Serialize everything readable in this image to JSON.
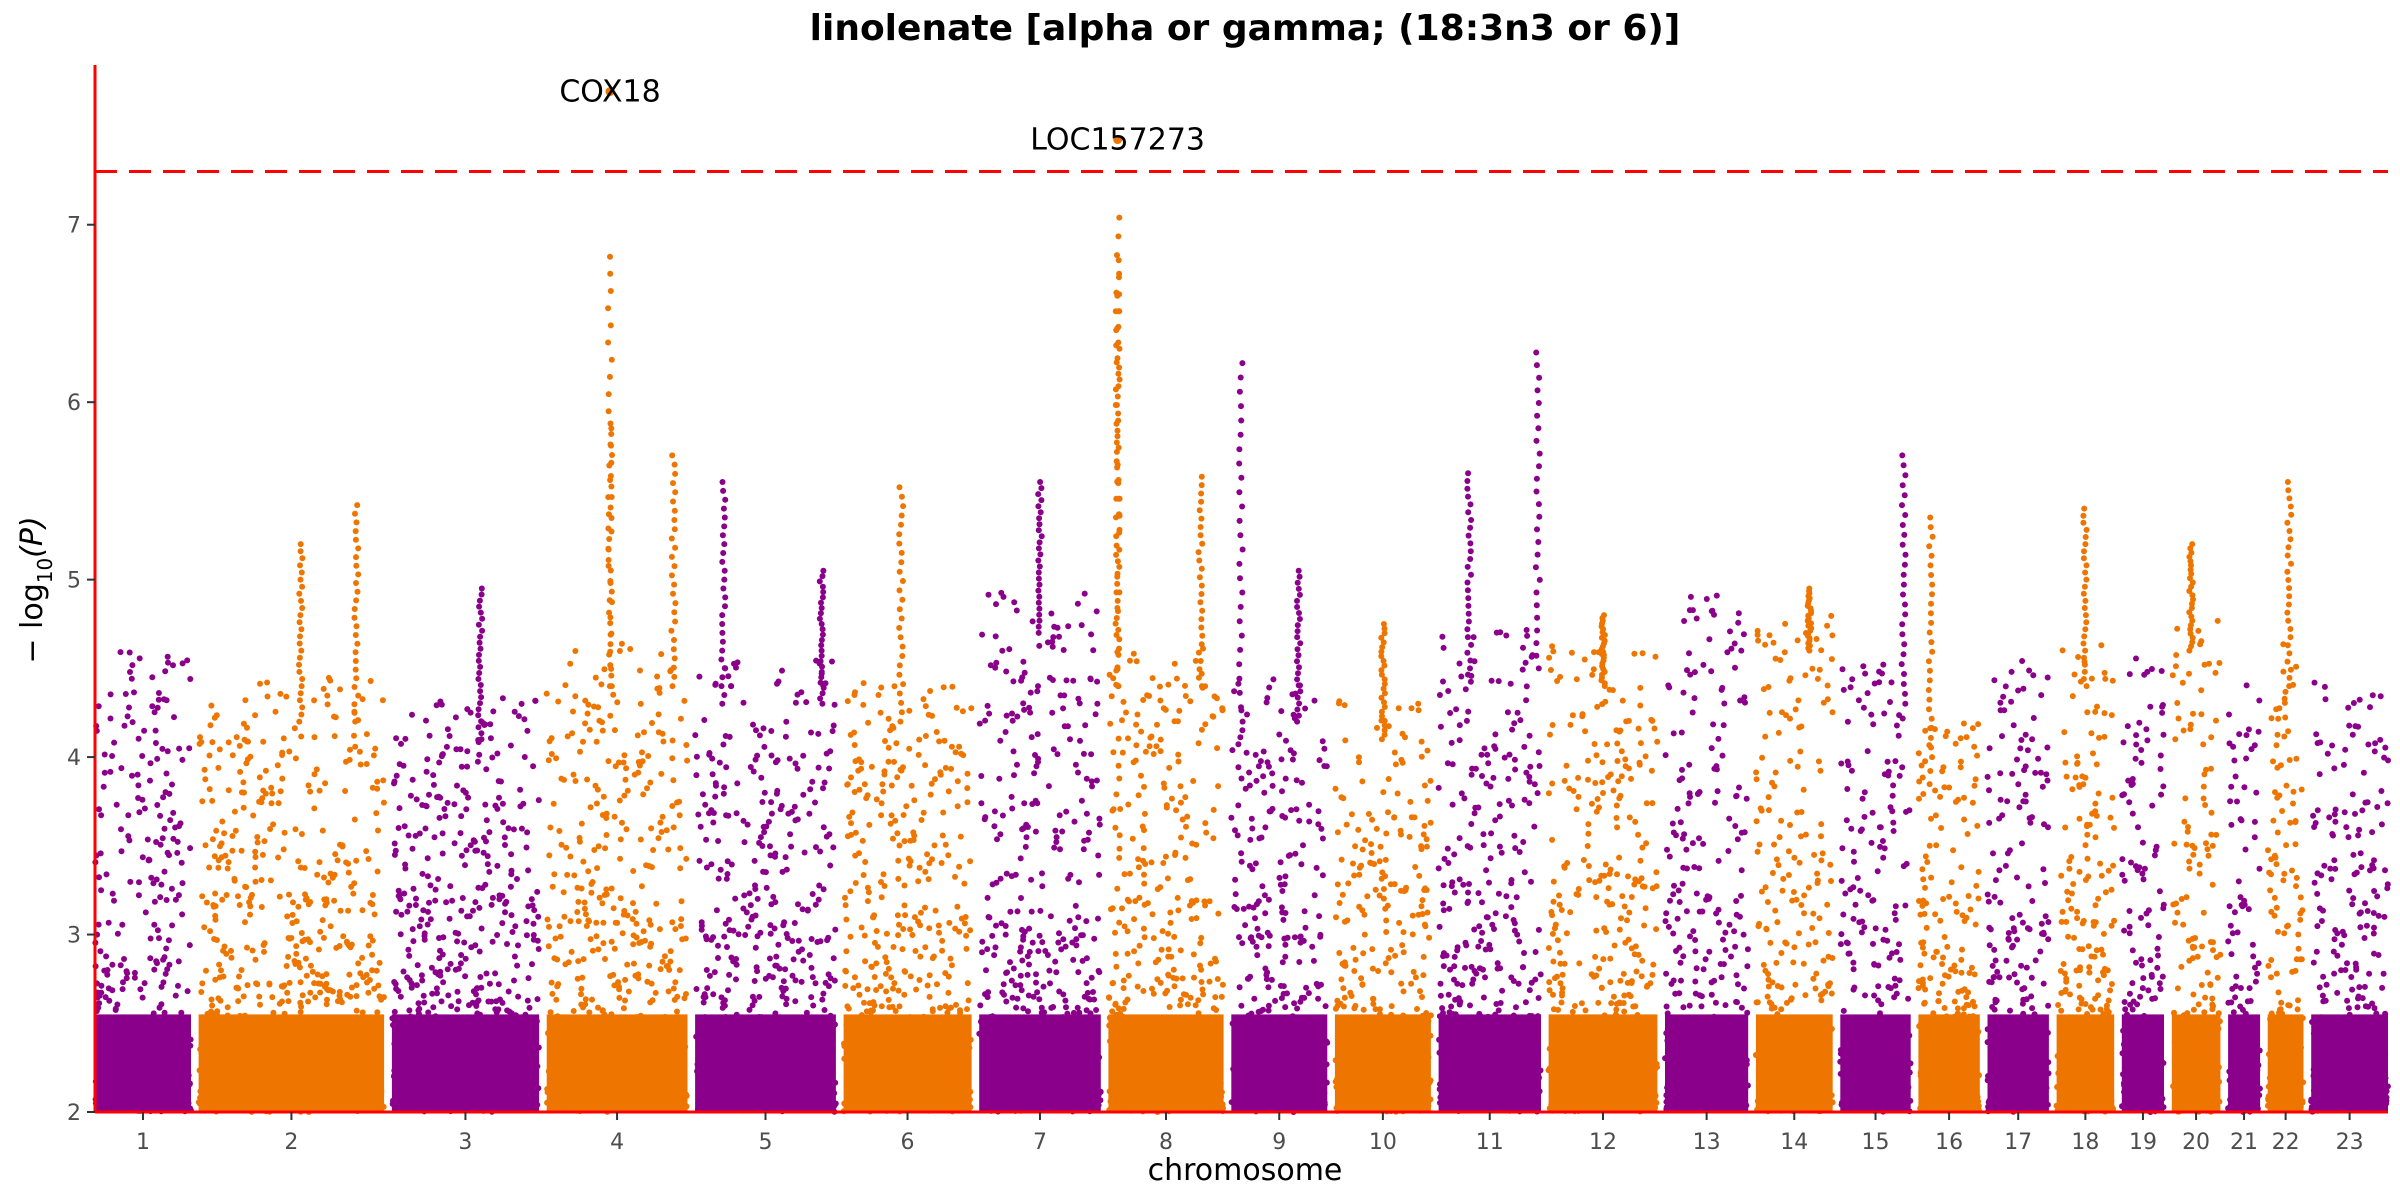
{
  "chart_data": {
    "type": "scatter",
    "title": "linolenate [alpha or gamma; (18:3n3 or 6)]",
    "xlabel": "chromosome",
    "ylabel_main": "− log",
    "ylabel_sub": "10",
    "ylabel_tail": "(P)",
    "ylim": [
      2,
      7.9
    ],
    "yticks": [
      2,
      3,
      4,
      5,
      6,
      7
    ],
    "significance_line": 7.3,
    "colors": {
      "odd": "#8B008B",
      "even": "#EE7600",
      "threshold": "#FF0000"
    },
    "chromosomes": [
      {
        "label": "1",
        "length": 0.75,
        "base": 4.6,
        "peaks": []
      },
      {
        "label": "2",
        "length": 1.45,
        "base": 4.4,
        "peaks": [
          [
            0.55,
            5.2
          ],
          [
            0.85,
            5.42
          ]
        ]
      },
      {
        "label": "3",
        "length": 1.15,
        "base": 4.3,
        "peaks": [
          [
            0.6,
            4.95
          ]
        ]
      },
      {
        "label": "4",
        "length": 1.1,
        "base": 4.6,
        "peaks": [
          [
            0.45,
            6.82
          ],
          [
            0.45,
            5.88
          ],
          [
            0.9,
            5.7
          ]
        ]
      },
      {
        "label": "5",
        "length": 1.1,
        "base": 4.5,
        "peaks": [
          [
            0.2,
            5.55
          ],
          [
            0.9,
            5.05
          ]
        ]
      },
      {
        "label": "6",
        "length": 1.0,
        "base": 4.4,
        "peaks": [
          [
            0.45,
            5.52
          ]
        ]
      },
      {
        "label": "7",
        "length": 0.95,
        "base": 4.9,
        "peaks": [
          [
            0.5,
            5.55
          ]
        ]
      },
      {
        "label": "8",
        "length": 0.9,
        "base": 4.6,
        "peaks": [
          [
            0.08,
            7.04
          ],
          [
            0.08,
            6.8
          ],
          [
            0.08,
            6.6
          ],
          [
            0.8,
            5.58
          ]
        ]
      },
      {
        "label": "9",
        "length": 0.75,
        "base": 4.4,
        "peaks": [
          [
            0.1,
            6.22
          ],
          [
            0.7,
            5.05
          ]
        ]
      },
      {
        "label": "10",
        "length": 0.75,
        "base": 4.3,
        "peaks": [
          [
            0.5,
            4.75
          ]
        ]
      },
      {
        "label": "11",
        "length": 0.8,
        "base": 4.7,
        "peaks": [
          [
            0.3,
            5.6
          ],
          [
            0.97,
            6.28
          ]
        ]
      },
      {
        "label": "12",
        "length": 0.85,
        "base": 4.6,
        "peaks": [
          [
            0.5,
            4.8
          ]
        ]
      },
      {
        "label": "13",
        "length": 0.65,
        "base": 4.9,
        "peaks": []
      },
      {
        "label": "14",
        "length": 0.6,
        "base": 4.8,
        "peaks": [
          [
            0.7,
            4.95
          ]
        ]
      },
      {
        "label": "15",
        "length": 0.55,
        "base": 4.5,
        "peaks": [
          [
            0.9,
            5.7
          ]
        ]
      },
      {
        "label": "16",
        "length": 0.48,
        "base": 4.2,
        "peaks": [
          [
            0.2,
            5.35
          ]
        ]
      },
      {
        "label": "17",
        "length": 0.48,
        "base": 4.5,
        "peaks": []
      },
      {
        "label": "18",
        "length": 0.45,
        "base": 4.6,
        "peaks": [
          [
            0.5,
            5.4
          ]
        ]
      },
      {
        "label": "19",
        "length": 0.33,
        "base": 4.6,
        "peaks": []
      },
      {
        "label": "20",
        "length": 0.38,
        "base": 4.8,
        "peaks": [
          [
            0.4,
            5.2
          ]
        ]
      },
      {
        "label": "21",
        "length": 0.25,
        "base": 4.4,
        "peaks": []
      },
      {
        "label": "22",
        "length": 0.28,
        "base": 4.6,
        "peaks": [
          [
            0.6,
            5.55
          ]
        ]
      },
      {
        "label": "23",
        "length": 0.6,
        "base": 4.4,
        "peaks": []
      }
    ],
    "annotations": [
      {
        "label": "COX18",
        "chromosome": "4",
        "pos": 0.45,
        "y": 7.75
      },
      {
        "label": "LOC157273",
        "chromosome": "8",
        "pos": 0.08,
        "y": 7.48
      }
    ]
  }
}
